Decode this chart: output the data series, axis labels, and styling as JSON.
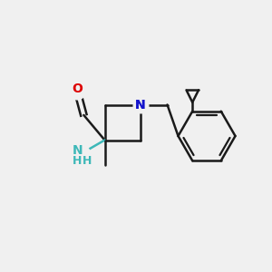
{
  "bg_color": "#f0f0f0",
  "bond_color": "#1a1a1a",
  "n_color": "#1414cc",
  "o_color": "#dd0000",
  "nh2_color": "#3db8b8",
  "lw": 1.8,
  "figsize": [
    3.0,
    3.0
  ],
  "dpi": 100,
  "xlim": [
    0,
    10
  ],
  "ylim": [
    0,
    10
  ]
}
